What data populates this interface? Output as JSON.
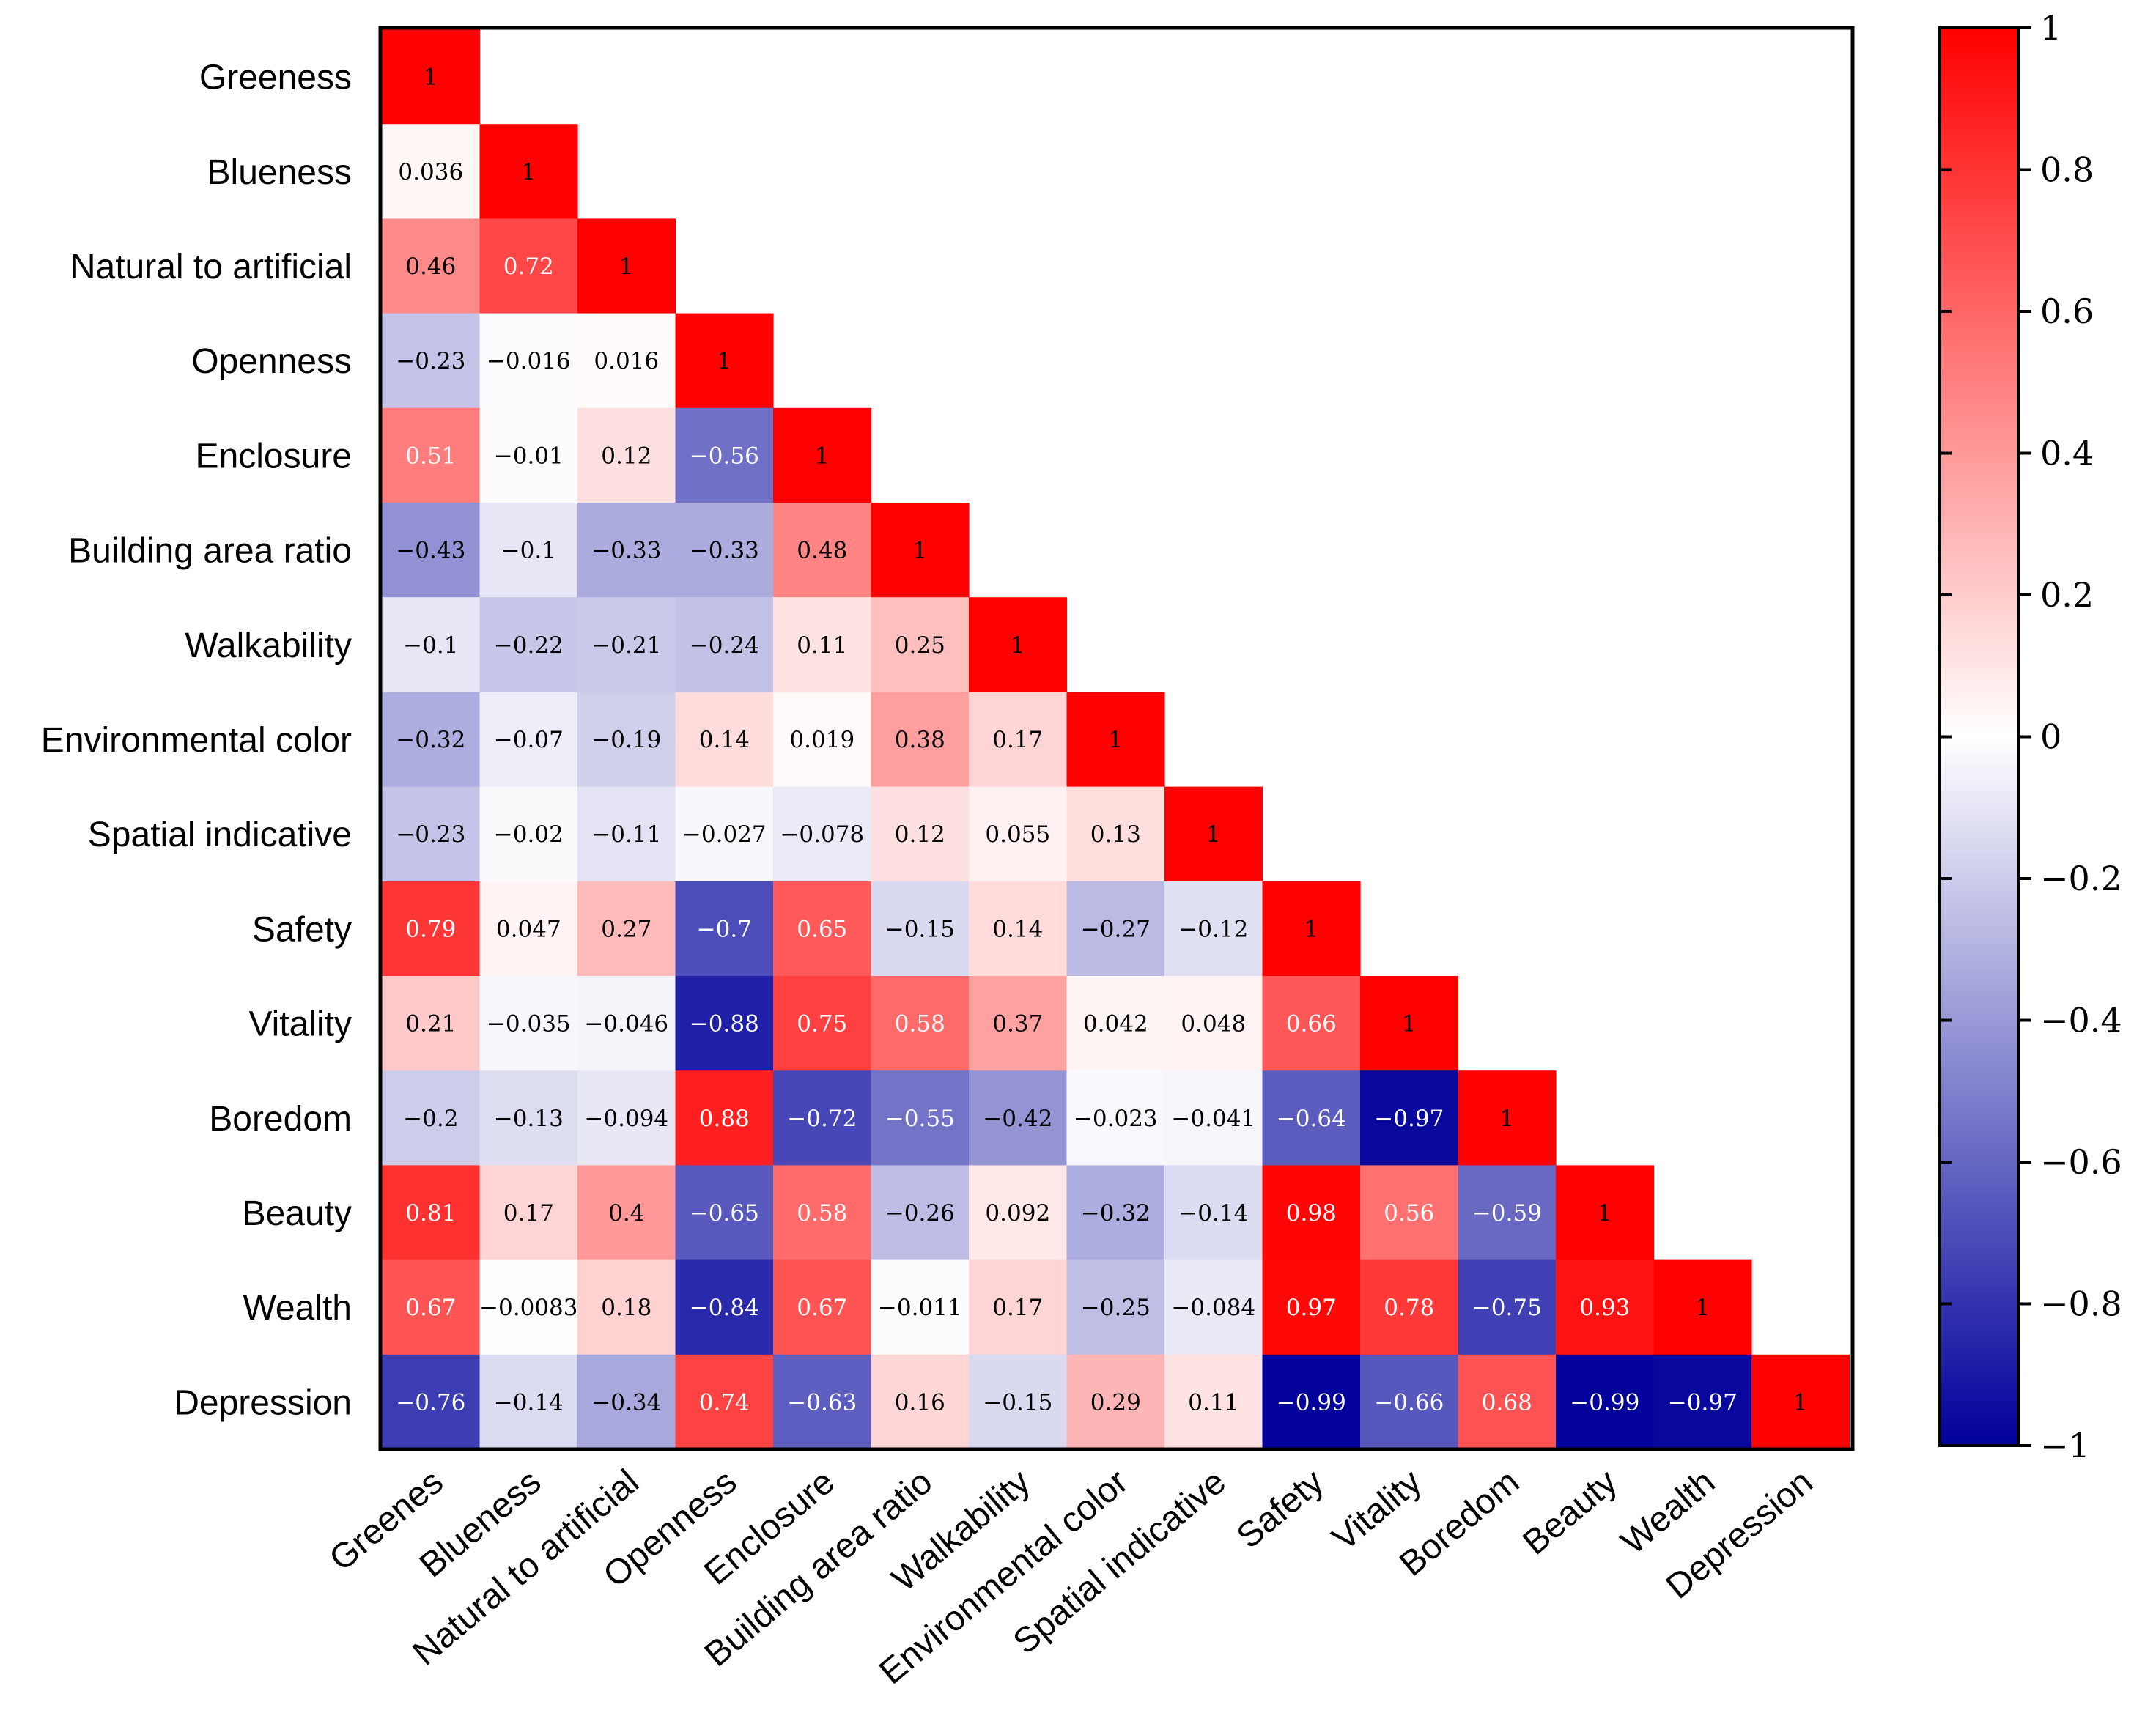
{
  "chart_data": {
    "type": "heatmap",
    "title": "",
    "variant": "lower-triangle correlation matrix",
    "labels": [
      "Greeness",
      "Blueness",
      "Natural to artificial",
      "Openness",
      "Enclosure",
      "Building area ratio",
      "Walkability",
      "Environmental color",
      "Spatial indicative",
      "Safety",
      "Vitality",
      "Boredom",
      "Beauty",
      "Wealth",
      "Depression"
    ],
    "x_labels": [
      "Greenes",
      "Blueness",
      "Natural to artificial",
      "Openness",
      "Enclosure",
      "Building area ratio",
      "Walkability",
      "Environmental color",
      "Spatial indicative",
      "Safety",
      "Vitality",
      "Boredom",
      "Beauty",
      "Wealth",
      "Depression"
    ],
    "matrix": [
      [
        "1"
      ],
      [
        "0.036",
        "1"
      ],
      [
        "0.46",
        "0.72",
        "1"
      ],
      [
        "-0.23",
        "-0.016",
        "0.016",
        "1"
      ],
      [
        "0.51",
        "-0.01",
        "0.12",
        "-0.56",
        "1"
      ],
      [
        "-0.43",
        "-0.1",
        "-0.33",
        "-0.33",
        "0.48",
        "1"
      ],
      [
        "-0.1",
        "-0.22",
        "-0.21",
        "-0.24",
        "0.11",
        "0.25",
        "1"
      ],
      [
        "-0.32",
        "-0.07",
        "-0.19",
        "0.14",
        "0.019",
        "0.38",
        "0.17",
        "1"
      ],
      [
        "-0.23",
        "-0.02",
        "-0.11",
        "-0.027",
        "-0.078",
        "0.12",
        "0.055",
        "0.13",
        "1"
      ],
      [
        "0.79",
        "0.047",
        "0.27",
        "-0.7",
        "0.65",
        "-0.15",
        "0.14",
        "-0.27",
        "-0.12",
        "1"
      ],
      [
        "0.21",
        "-0.035",
        "-0.046",
        "-0.88",
        "0.75",
        "0.58",
        "0.37",
        "0.042",
        "0.048",
        "0.66",
        "1"
      ],
      [
        "-0.2",
        "-0.13",
        "-0.094",
        "0.88",
        "-0.72",
        "-0.55",
        "-0.42",
        "-0.023",
        "-0.041",
        "-0.64",
        "-0.97",
        "1"
      ],
      [
        "0.81",
        "0.17",
        "0.4",
        "-0.65",
        "0.58",
        "-0.26",
        "0.092",
        "-0.32",
        "-0.14",
        "0.98",
        "0.56",
        "-0.59",
        "1"
      ],
      [
        "0.67",
        "-0.0083",
        "0.18",
        "-0.84",
        "0.67",
        "-0.011",
        "0.17",
        "-0.25",
        "-0.084",
        "0.97",
        "0.78",
        "-0.75",
        "0.93",
        "1"
      ],
      [
        "-0.76",
        "-0.14",
        "-0.34",
        "0.74",
        "-0.63",
        "0.16",
        "-0.15",
        "0.29",
        "0.11",
        "-0.99",
        "-0.66",
        "0.68",
        "-0.99",
        "-0.97",
        "1"
      ]
    ],
    "colorbar": {
      "range": [
        -1,
        1
      ],
      "ticks": [
        "1",
        "0.8",
        "0.6",
        "0.4",
        "0.2",
        "0",
        "-0.2",
        "-0.4",
        "-0.6",
        "-0.8",
        "-1"
      ],
      "colors": {
        "negative": "#00009b",
        "zero": "#ffffff",
        "positive": "#ff0000"
      }
    }
  }
}
